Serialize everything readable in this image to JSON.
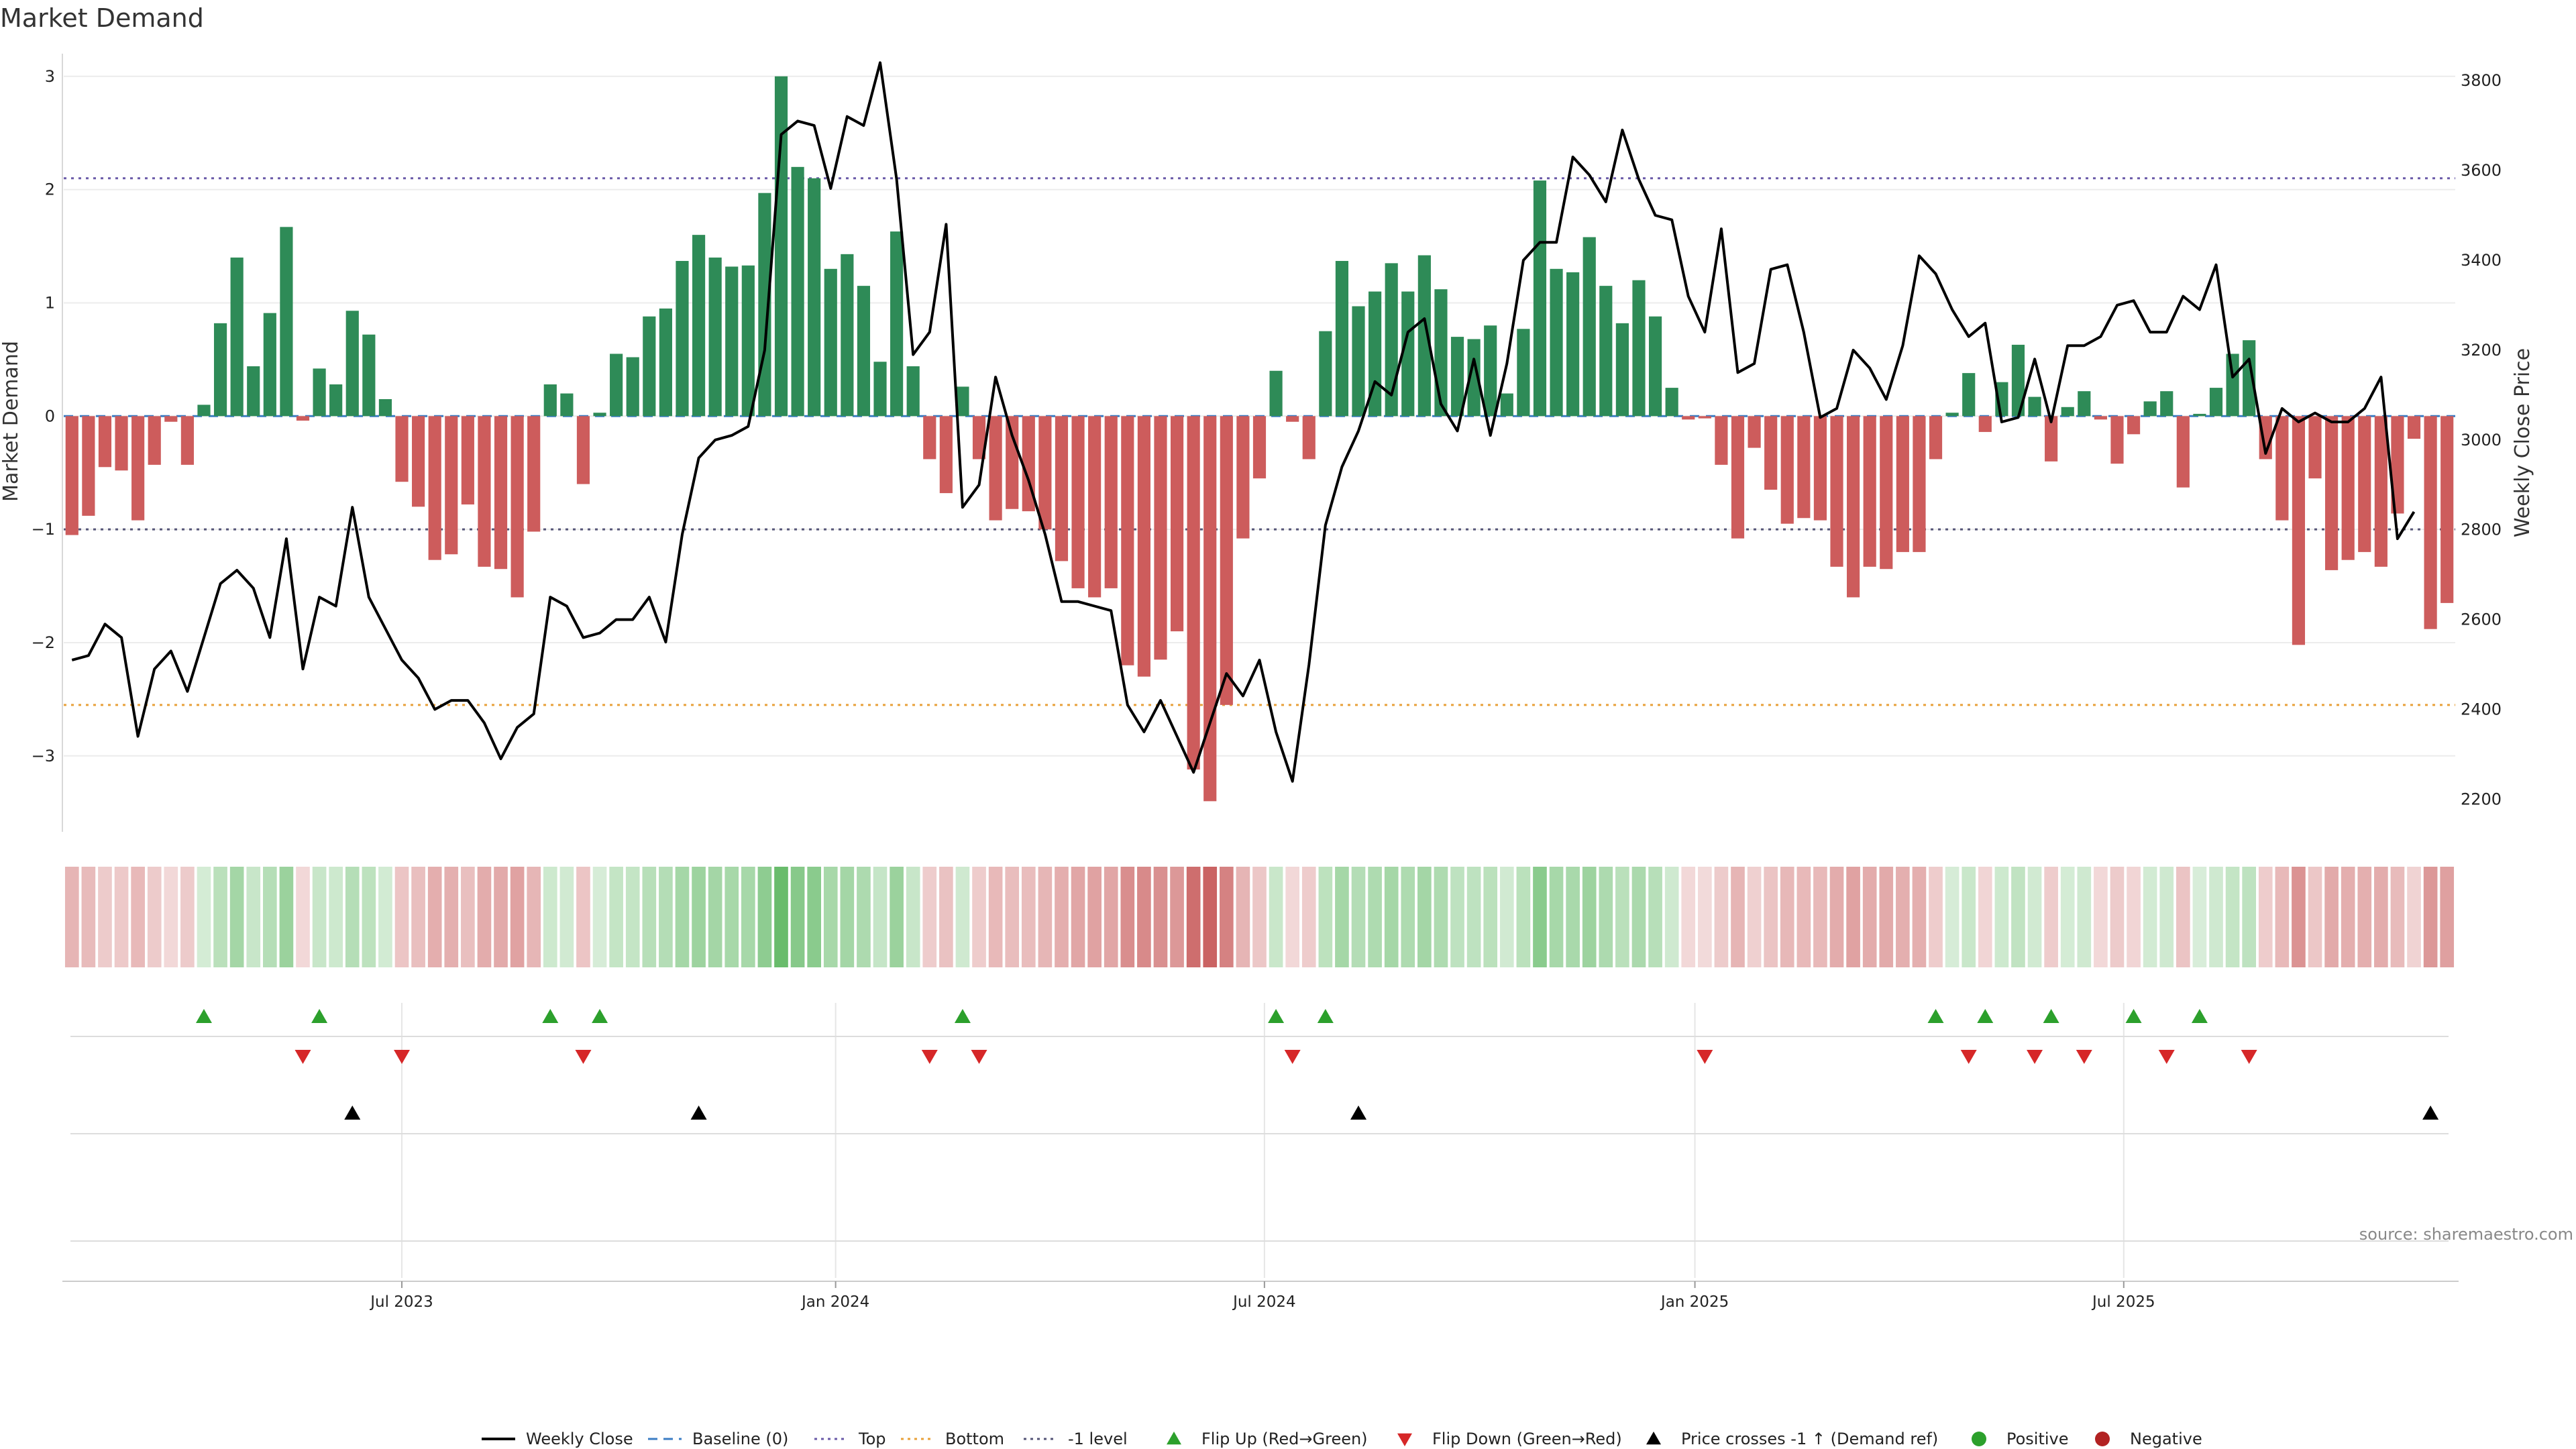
{
  "chart_data": {
    "type": "bar",
    "title": "Market Demand",
    "ylabel_left": "Market Demand",
    "ylabel_right": "Weekly Close Price",
    "ylim_left": [
      -3.7,
      3.2
    ],
    "ylim_right": [
      2120,
      3860
    ],
    "yticks_left": [
      -3,
      -2,
      -1,
      0,
      1,
      2,
      3
    ],
    "yticks_left_labels": [
      "−3",
      "−2",
      "−1",
      "0",
      "1",
      "2",
      "3"
    ],
    "yticks_right": [
      2200,
      2400,
      2600,
      2800,
      3000,
      3200,
      3400,
      3600,
      3800
    ],
    "yticks_right_labels": [
      "2200",
      "2400",
      "2600",
      "2800",
      "3000",
      "3200",
      "3400",
      "3600",
      "3800"
    ],
    "x_start": "2023-01-05",
    "x_step_days": 7,
    "x_ticks": [
      {
        "label": "Jul 2023",
        "index": 20
      },
      {
        "label": "Jan 2024",
        "index": 46.3
      },
      {
        "label": "Jul 2024",
        "index": 72.3
      },
      {
        "label": "Jan 2025",
        "index": 98.4
      },
      {
        "label": "Jul 2025",
        "index": 124.4
      }
    ],
    "reference_lines": [
      {
        "name": "Top",
        "value": 2.1,
        "color": "#6a5aa8"
      },
      {
        "name": "Bottom",
        "value": -2.55,
        "color": "#e8a13a"
      },
      {
        "name": "-1 level",
        "value": -1.0,
        "color": "#555577"
      }
    ],
    "demand": [
      -1.05,
      -0.88,
      -0.45,
      -0.48,
      -0.92,
      -0.43,
      -0.05,
      -0.43,
      0.1,
      0.82,
      1.4,
      0.44,
      0.91,
      1.67,
      -0.04,
      0.42,
      0.28,
      0.93,
      0.72,
      0.15,
      -0.58,
      -0.8,
      -1.27,
      -1.22,
      -0.78,
      -1.33,
      -1.35,
      -1.6,
      -1.02,
      0.28,
      0.2,
      -0.6,
      0.03,
      0.55,
      0.52,
      0.88,
      0.95,
      1.37,
      1.6,
      1.4,
      1.32,
      1.33,
      1.97,
      3.0,
      2.2,
      2.1,
      1.3,
      1.43,
      1.15,
      0.48,
      1.63,
      0.44,
      -0.38,
      -0.68,
      0.26,
      -0.38,
      -0.92,
      -0.82,
      -0.84,
      -1.0,
      -1.28,
      -1.52,
      -1.6,
      -1.52,
      -2.2,
      -2.3,
      -2.15,
      -1.9,
      -3.12,
      -3.4,
      -2.55,
      -1.08,
      -0.55,
      0.4,
      -0.05,
      -0.38,
      0.75,
      1.37,
      0.97,
      1.1,
      1.35,
      1.1,
      1.42,
      1.12,
      0.7,
      0.68,
      0.8,
      0.2,
      0.77,
      2.08,
      1.3,
      1.27,
      1.58,
      1.15,
      0.82,
      1.2,
      0.88,
      0.25,
      -0.03,
      -0.02,
      -0.43,
      -1.08,
      -0.28,
      -0.65,
      -0.95,
      -0.9,
      -0.92,
      -1.33,
      -1.6,
      -1.33,
      -1.35,
      -1.2,
      -1.2,
      -0.38,
      0.03,
      0.38,
      -0.14,
      0.3,
      0.63,
      0.17,
      -0.4,
      0.08,
      0.22,
      -0.03,
      -0.42,
      -0.16,
      0.13,
      0.22,
      -0.63,
      0.02,
      0.25,
      0.55,
      0.67,
      -0.38,
      -0.92,
      -2.02,
      -0.55,
      -1.36,
      -1.27,
      -1.2,
      -1.33,
      -0.86,
      -0.2,
      -1.88,
      -1.65
    ],
    "weekly_close": [
      2510,
      2520,
      2590,
      2560,
      2340,
      2490,
      2530,
      2440,
      2560,
      2680,
      2710,
      2670,
      2560,
      2780,
      2490,
      2650,
      2630,
      2850,
      2650,
      2580,
      2510,
      2470,
      2400,
      2420,
      2420,
      2370,
      2290,
      2360,
      2390,
      2650,
      2630,
      2560,
      2570,
      2600,
      2600,
      2650,
      2550,
      2790,
      2960,
      3000,
      3010,
      3030,
      3200,
      3680,
      3710,
      3700,
      3560,
      3720,
      3700,
      3840,
      3580,
      3190,
      3240,
      3480,
      2850,
      2900,
      3140,
      3010,
      2910,
      2790,
      2640,
      2640,
      2630,
      2620,
      2410,
      2350,
      2420,
      2340,
      2260,
      2370,
      2480,
      2430,
      2510,
      2350,
      2240,
      2500,
      2810,
      2940,
      3020,
      3130,
      3100,
      3240,
      3270,
      3080,
      3020,
      3180,
      3010,
      3170,
      3400,
      3440,
      3440,
      3630,
      3590,
      3530,
      3690,
      3580,
      3500,
      3490,
      3320,
      3240,
      3470,
      3150,
      3170,
      3380,
      3390,
      3240,
      3050,
      3070,
      3200,
      3160,
      3090,
      3210,
      3410,
      3370,
      3290,
      3230,
      3260,
      3040,
      3050,
      3180,
      3040,
      3210,
      3210,
      3230,
      3300,
      3310,
      3240,
      3240,
      3320,
      3290,
      3390,
      3140,
      3180,
      2970,
      3070,
      3040,
      3060,
      3040,
      3040,
      3070,
      3140,
      2780,
      2840
    ],
    "flip_up_indices": [
      8,
      15,
      29,
      32,
      54,
      73,
      76,
      113,
      116,
      120,
      125,
      129
    ],
    "flip_down_indices": [
      14,
      20,
      31,
      52,
      55,
      74,
      99,
      115,
      119,
      122,
      127,
      132
    ],
    "price_cross_indices": [
      17,
      38,
      78,
      143
    ],
    "legend": [
      {
        "label": "Weekly Close",
        "type": "line",
        "color": "#000000"
      },
      {
        "label": "Baseline (0)",
        "type": "dash",
        "color": "#3b7dc4"
      },
      {
        "label": "Top",
        "type": "dot",
        "color": "#6a5aa8"
      },
      {
        "label": "Bottom",
        "type": "dot",
        "color": "#e8a13a"
      },
      {
        "label": "-1 level",
        "type": "dot",
        "color": "#555577"
      },
      {
        "label": "Flip Up (Red→Green)",
        "type": "tri-up",
        "color": "#2ca02c"
      },
      {
        "label": "Flip Down (Green→Red)",
        "type": "tri-down",
        "color": "#d62728"
      },
      {
        "label": "Price crosses -1 ↑ (Demand ref)",
        "type": "tri-up",
        "color": "#000000"
      },
      {
        "label": "Positive",
        "type": "dot-marker",
        "color": "#2ca02c"
      },
      {
        "label": "Negative",
        "type": "dot-marker",
        "color": "#b22222"
      }
    ],
    "colors": {
      "positive_bar": "#2e8b57",
      "negative_bar": "#cd5c5c",
      "price_line": "#000000"
    },
    "source": "source: sharemaestro.com"
  }
}
